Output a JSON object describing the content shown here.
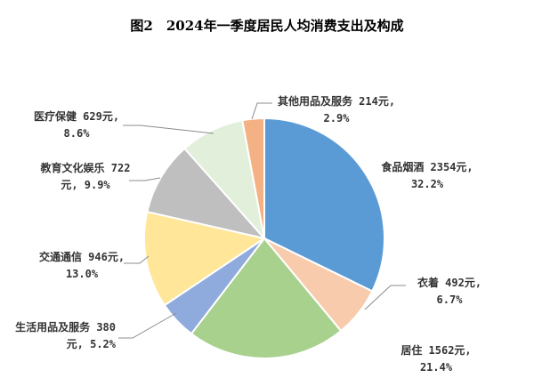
{
  "chart_data": {
    "type": "pie",
    "title": "图2　2024年一季度居民人均消费支出及构成",
    "slices": [
      {
        "name": "食品烟酒",
        "value": 2354,
        "percent": 32.2,
        "color": "#5b9bd5",
        "label_lines": [
          "食品烟酒 2354元,",
          "32.2%"
        ]
      },
      {
        "name": "衣着",
        "value": 492,
        "percent": 6.7,
        "color": "#f8cbad",
        "label_lines": [
          "衣着 492元,",
          "6.7%"
        ]
      },
      {
        "name": "居住",
        "value": 1562,
        "percent": 21.4,
        "color": "#a9d18e",
        "label_lines": [
          "居住 1562元,",
          "21.4%"
        ]
      },
      {
        "name": "生活用品及服务",
        "value": 380,
        "percent": 5.2,
        "color": "#8faadc",
        "label_lines": [
          "生活用品及服务 380",
          "元, 5.2%"
        ]
      },
      {
        "name": "交通通信",
        "value": 946,
        "percent": 13.0,
        "color": "#ffe699",
        "label_lines": [
          "交通通信 946元,",
          "13.0%"
        ]
      },
      {
        "name": "教育文化娱乐",
        "value": 722,
        "percent": 9.9,
        "color": "#bfbfbf",
        "label_lines": [
          "教育文化娱乐 722",
          "元, 9.9%"
        ]
      },
      {
        "name": "医疗保健",
        "value": 629,
        "percent": 8.6,
        "color": "#e2efda",
        "label_lines": [
          "医疗保健 629元,",
          "8.6%"
        ]
      },
      {
        "name": "其他用品及服务",
        "value": 214,
        "percent": 2.9,
        "color": "#f4b183",
        "label_lines": [
          "其他用品及服务 214元,",
          "2.9%"
        ]
      }
    ],
    "legend": "none"
  }
}
